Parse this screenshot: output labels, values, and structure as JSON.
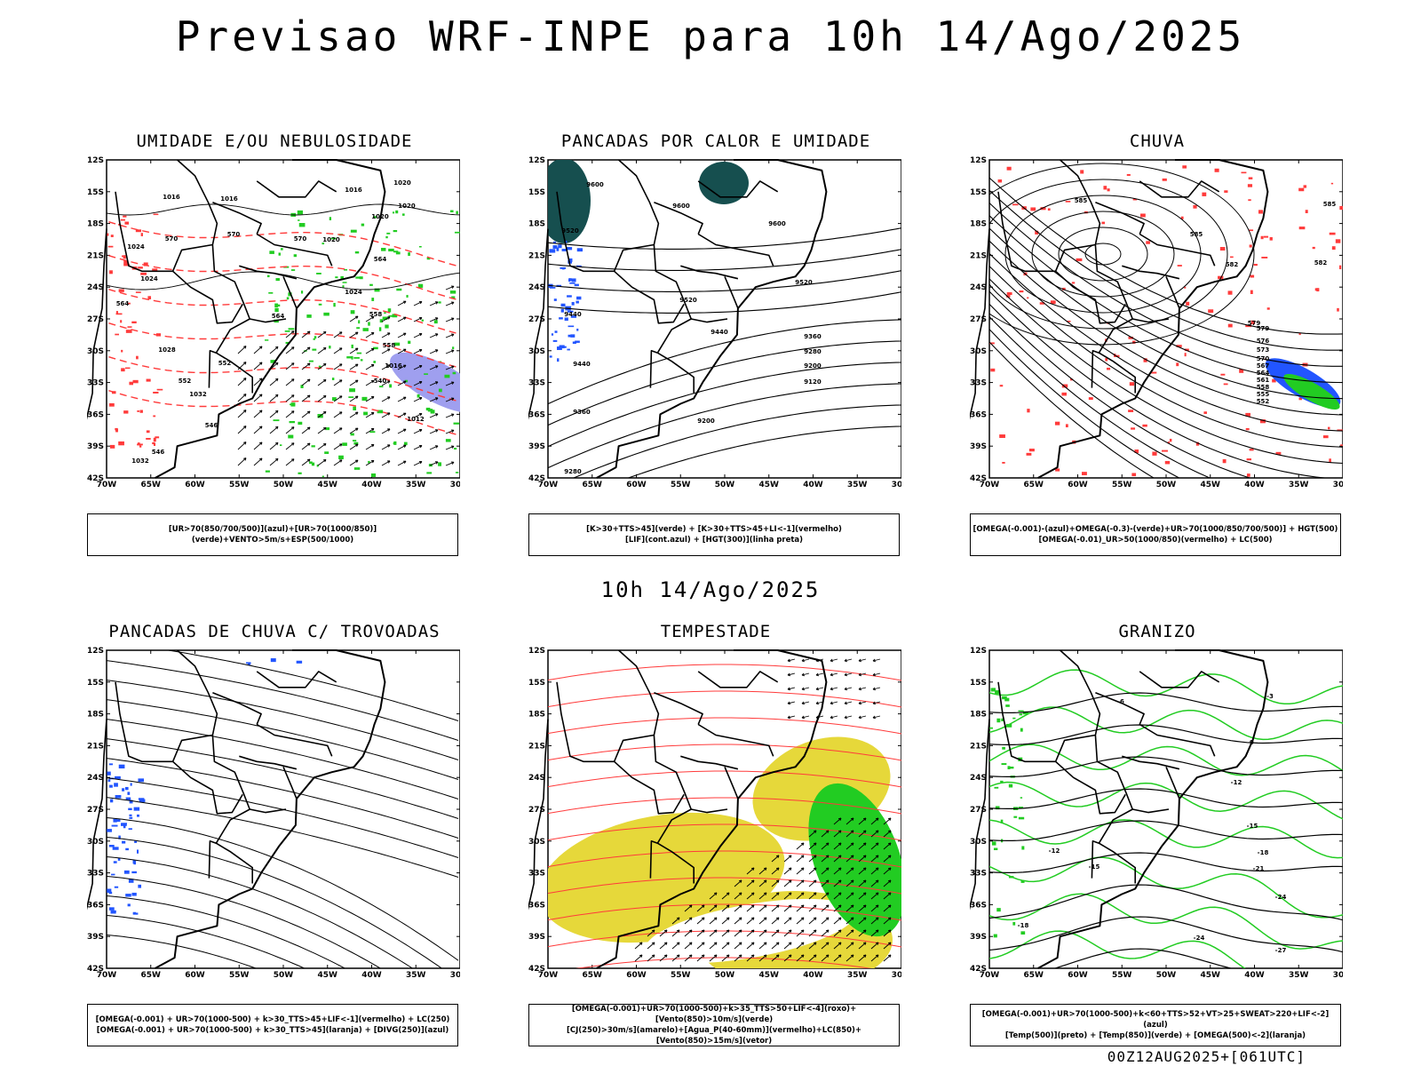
{
  "header": {
    "title": "Previsao WRF-INPE  para 10h 14/Ago/2025"
  },
  "mid_time": "10h 14/Ago/2025",
  "footer": "00Z12AUG2025+[061UTC]",
  "axes": {
    "lat_labels": [
      "12S",
      "15S",
      "18S",
      "21S",
      "24S",
      "27S",
      "30S",
      "33S",
      "36S",
      "39S",
      "42S"
    ],
    "lon_labels": [
      "70W",
      "65W",
      "60W",
      "55W",
      "50W",
      "45W",
      "40W",
      "35W",
      "30W"
    ]
  },
  "panels": [
    {
      "title": "UMIDADE E/OU NEBULOSIDADE",
      "legend": [
        "[UR>70(850/700/500)](azul)+[UR>70(1000/850)](verde)+VENTO>5m/s+ESP(500/1000)"
      ],
      "labels": [
        "1016",
        "1016",
        "1016",
        "1020",
        "1020",
        "1020",
        "1020",
        "1024",
        "1024",
        "1024",
        "1028",
        "1032",
        "1032",
        "1016",
        "1012",
        "570",
        "570",
        "570",
        "564",
        "564",
        "564",
        "558",
        "558",
        "552",
        "552",
        "546",
        "546",
        "540"
      ]
    },
    {
      "title": "PANCADAS POR CALOR E UMIDADE",
      "legend": [
        "[K>30+TTS>45](verde)  +  [K>30+TTS>45+LI<-1](vermelho)",
        "[LIF](cont.azul)  +  [HGT(300)](linha preta)"
      ],
      "labels": [
        "9600",
        "9600",
        "9600",
        "9520",
        "9520",
        "9520",
        "9440",
        "9440",
        "9440",
        "9360",
        "9360",
        "9280",
        "9280",
        "9200",
        "9200",
        "9120"
      ]
    },
    {
      "title": "CHUVA",
      "legend": [
        "[OMEGA(-0.001)-(azul)+OMEGA(-0.3)-(verde)+UR>70(1000/850/700/500)]  +  HGT(500)",
        "[OMEGA(-0.01)_UR>50(1000/850)(vermelho)  +  LC(500)"
      ],
      "labels": [
        "585",
        "585",
        "585",
        "582",
        "582",
        "579",
        "579",
        "576",
        "573",
        "570",
        "567",
        "564",
        "561",
        "558",
        "555",
        "552"
      ]
    },
    {
      "title": "PANCADAS DE CHUVA C/ TROVOADAS",
      "legend": [
        "[OMEGA(-0.001)  +  UR>70(1000-500)  +  k>30_TTS>45+LIF<-1](vermelho)  +  LC(250)",
        "[OMEGA(-0.001)  +  UR>70(1000-500)  +  k>30_TTS>45](laranja)  +  [DIVG(250)](azul)"
      ],
      "labels": []
    },
    {
      "title": "TEMPESTADE",
      "legend": [
        "[OMEGA(-0.001)+UR>70(1000-500)+k>35_TTS>50+LIF<-4](roxo)+[Vento(850)>10m/s](verde)",
        "[CJ(250)>30m/s](amarelo)+[Agua_P(40-60mm)](vermelho)+LC(850)+[Vento(850)>15m/s](vetor)"
      ],
      "labels": []
    },
    {
      "title": "GRANIZO",
      "legend": [
        "[OMEGA(-0.001)+UR>70(1000-500)+k<60+TTS>52+VT>25+SWEAT>220+LIF<-2](azul)",
        "[Temp(500)](preto)  +  [Temp(850)](verde)  +  [OMEGA(500)<-2](laranja)"
      ],
      "labels": [
        "-3",
        "-6",
        "-9",
        "-12",
        "-12",
        "-15",
        "-15",
        "-18",
        "-18",
        "-21",
        "-24",
        "-24",
        "-27"
      ]
    }
  ],
  "colors": {
    "green": "#22cc22",
    "red": "#ff3b3b",
    "blue": "#2255ff",
    "yellow": "#e6d83a",
    "lavender": "#9f9fef",
    "teal": "#164f4f",
    "black": "#000000"
  }
}
